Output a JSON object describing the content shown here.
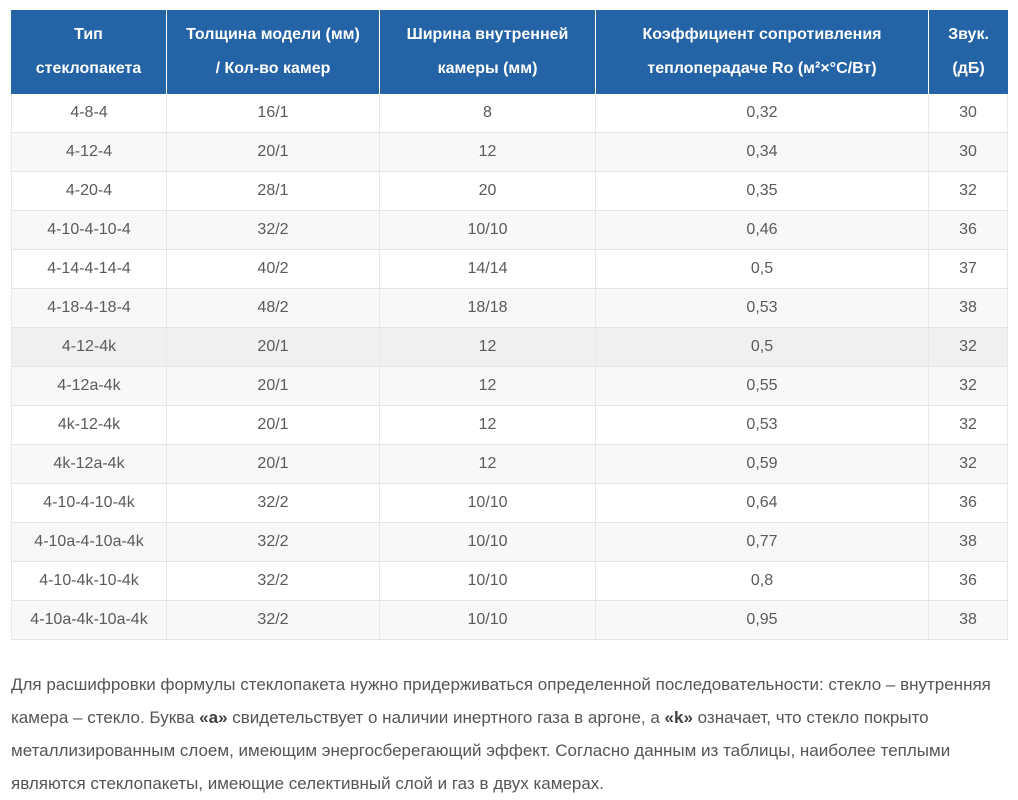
{
  "table": {
    "headers": [
      "Тип\nстеклопакета",
      "Толщина модели (мм)\n/ Кол-во камер",
      "Ширина внутренней\nкамеры (мм)",
      "Коэффициент сопротивления\nтеплоперадаче Ro (м²×°C/Вт)",
      "Звук.\n(дБ)"
    ],
    "rows": [
      {
        "type": "4-8-4",
        "thickness": "16/1",
        "chamber_width": "8",
        "ro": "0,32",
        "sound": "30",
        "highlighted": false
      },
      {
        "type": "4-12-4",
        "thickness": "20/1",
        "chamber_width": "12",
        "ro": "0,34",
        "sound": "30",
        "highlighted": false
      },
      {
        "type": "4-20-4",
        "thickness": "28/1",
        "chamber_width": "20",
        "ro": "0,35",
        "sound": "32",
        "highlighted": false
      },
      {
        "type": "4-10-4-10-4",
        "thickness": "32/2",
        "chamber_width": "10/10",
        "ro": "0,46",
        "sound": "36",
        "highlighted": false
      },
      {
        "type": "4-14-4-14-4",
        "thickness": "40/2",
        "chamber_width": "14/14",
        "ro": "0,5",
        "sound": "37",
        "highlighted": false
      },
      {
        "type": "4-18-4-18-4",
        "thickness": "48/2",
        "chamber_width": "18/18",
        "ro": "0,53",
        "sound": "38",
        "highlighted": false
      },
      {
        "type": "4-12-4k",
        "thickness": "20/1",
        "chamber_width": "12",
        "ro": "0,5",
        "sound": "32",
        "highlighted": true
      },
      {
        "type": "4-12a-4k",
        "thickness": "20/1",
        "chamber_width": "12",
        "ro": "0,55",
        "sound": "32",
        "highlighted": false
      },
      {
        "type": "4k-12-4k",
        "thickness": "20/1",
        "chamber_width": "12",
        "ro": "0,53",
        "sound": "32",
        "highlighted": false
      },
      {
        "type": "4k-12a-4k",
        "thickness": "20/1",
        "chamber_width": "12",
        "ro": "0,59",
        "sound": "32",
        "highlighted": false
      },
      {
        "type": "4-10-4-10-4k",
        "thickness": "32/2",
        "chamber_width": "10/10",
        "ro": "0,64",
        "sound": "36",
        "highlighted": false
      },
      {
        "type": "4-10a-4-10a-4k",
        "thickness": "32/2",
        "chamber_width": "10/10",
        "ro": "0,77",
        "sound": "38",
        "highlighted": false
      },
      {
        "type": "4-10-4k-10-4k",
        "thickness": "32/2",
        "chamber_width": "10/10",
        "ro": "0,8",
        "sound": "36",
        "highlighted": false
      },
      {
        "type": "4-10a-4k-10a-4k",
        "thickness": "32/2",
        "chamber_width": "10/10",
        "ro": "0,95",
        "sound": "38",
        "highlighted": false
      }
    ]
  },
  "description": {
    "segments": [
      {
        "text": "Для расшифровки формулы стеклопакета нужно придерживаться определенной последовательности: стекло – внутренняя камера – стекло. Буква ",
        "bold": false
      },
      {
        "text": "«а»",
        "bold": true
      },
      {
        "text": " свидетельствует о наличии инертного газа в аргоне, а ",
        "bold": false
      },
      {
        "text": "«k»",
        "bold": true
      },
      {
        "text": " означает, что стекло покрыто металлизированным слоем, имеющим энергосберегающий эффект. Согласно данным из таблицы, наиболее теплыми являются стеклопакеты, имеющие селективный слой и газ в двух камерах.",
        "bold": false
      }
    ]
  },
  "colors": {
    "header_background": "#2463a5",
    "header_text": "#ffffff",
    "body_text": "#5a5a5c",
    "stripe_row": "#f8f8f8",
    "highlighted_row": "#f0f0f0",
    "cell_border": "#e4e4e4"
  }
}
